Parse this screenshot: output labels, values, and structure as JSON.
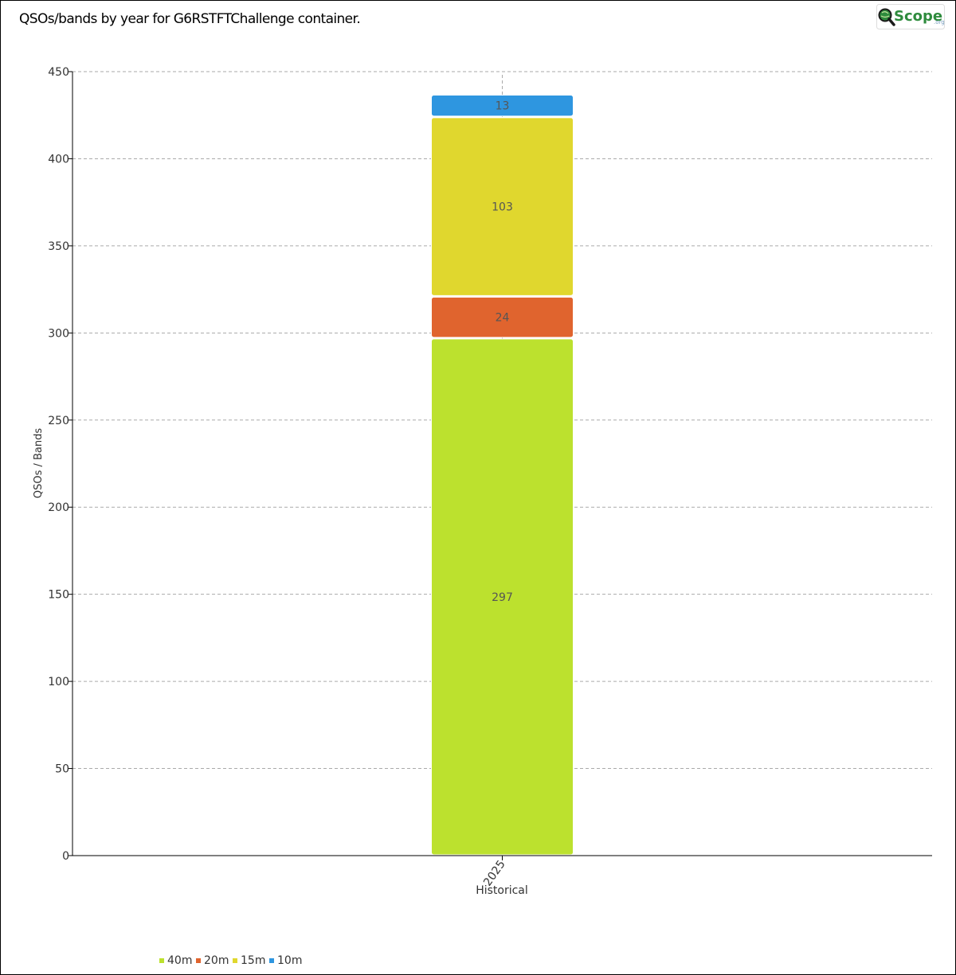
{
  "title": "QSOs/bands by year for G6RSTFTChallenge container.",
  "logo": {
    "text": "Scope",
    "suffix": ".org",
    "icon": "magnifier-q-icon"
  },
  "chart_data": {
    "type": "bar",
    "stacked": true,
    "categories": [
      "2025"
    ],
    "series": [
      {
        "name": "40m",
        "values": [
          297
        ],
        "color": "#bce12e"
      },
      {
        "name": "20m",
        "values": [
          24
        ],
        "color": "#e0642e"
      },
      {
        "name": "15m",
        "values": [
          103
        ],
        "color": "#e0d72e"
      },
      {
        "name": "10m",
        "values": [
          13
        ],
        "color": "#2e96e0"
      }
    ],
    "xlabel": "Historical",
    "ylabel": "QSOs / Bands",
    "ylim": [
      0,
      450
    ],
    "yticks": [
      0,
      50,
      100,
      150,
      200,
      250,
      300,
      350,
      400,
      450
    ],
    "grid": true,
    "legend_position": "bottom-left"
  }
}
